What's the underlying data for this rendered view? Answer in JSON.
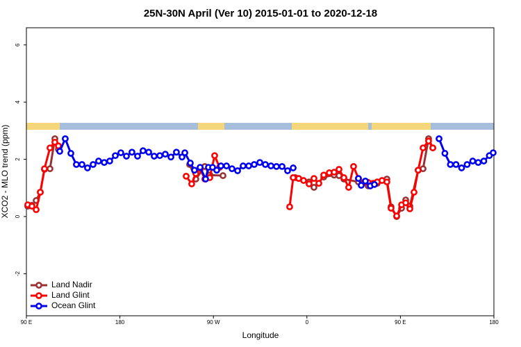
{
  "chart_data": {
    "type": "line",
    "title": "25N-30N April (Ver 10)   2015-01-01 to 2020-12-18",
    "x_label": "Longitude",
    "y_label": "XCO2 - MLO trend (ppm)",
    "xlim": [
      90,
      540
    ],
    "ylim": [
      -3.47,
      6.6
    ],
    "xticks": [
      {
        "value": 90,
        "label": "90 E"
      },
      180,
      {
        "value": 270,
        "label": "90 W"
      },
      {
        "value": 360,
        "label": "0"
      },
      {
        "value": 450,
        "label": "90 E"
      },
      {
        "value": 540,
        "label": "180"
      }
    ],
    "yticks": [
      -2,
      0,
      2,
      4,
      6
    ],
    "legend": "bottom-left",
    "series": [
      {
        "name": "Land Nadir",
        "color": "#993333",
        "x": [
          91.3,
          95.3,
          99.4,
          103.4,
          107.4,
          112.7,
          117.4,
          120.8,
          null,
          247.1,
          253.1,
          261.8,
          266.5,
          279.2,
          null,
          348.8,
          352.1,
          362.1,
          366.8,
          376.2,
          386.2,
          390.9,
          395.6,
          409.6,
          419,
          427.7,
          437,
          441,
          446.4,
          451.1,
          455.1,
          459.1,
          467.1,
          471.8,
          477.1,
          481.2
        ],
        "values": [
          0.36,
          0.39,
          0.56,
          0.85,
          1.65,
          1.67,
          2.72,
          2.35,
          null,
          1.82,
          1.31,
          1.75,
          1.45,
          1.43,
          null,
          1.36,
          1.33,
          1.21,
          1.02,
          1.38,
          1.45,
          1.43,
          1.31,
          1.21,
          1.07,
          1.16,
          1.31,
          0.34,
          0,
          0.29,
          0.58,
          0.36,
          1.62,
          1.67,
          2.72,
          2.4
        ]
      },
      {
        "name": "Land Glint",
        "color": "#ff0000",
        "x": [
          91.3,
          95.3,
          99.4,
          103.4,
          107.4,
          112.7,
          117.4,
          120.8,
          null,
          243.8,
          249.1,
          253.1,
          257.2,
          261.8,
          266.5,
          271.2,
          275.9,
          null,
          343.4,
          346.8,
          352.1,
          356.8,
          362.1,
          366.8,
          371.5,
          376.2,
          381.5,
          386.2,
          390.9,
          395.6,
          400.2,
          404.9,
          409.6,
          414.3,
          419,
          423.6,
          427.7,
          432.3,
          437,
          441,
          446.4,
          451.1,
          455.1,
          459.1,
          463.1,
          467.1,
          471.8,
          477.1,
          481.2
        ],
        "values": [
          0.41,
          0.36,
          0.24,
          0.85,
          1.67,
          2.4,
          2.6,
          2.47,
          null,
          1.41,
          1.14,
          1.5,
          1.67,
          1.31,
          1.36,
          2.13,
          1.72,
          null,
          0.34,
          1.36,
          1.33,
          1.26,
          1.14,
          1.33,
          1.16,
          1.45,
          1.53,
          1.55,
          1.65,
          1.36,
          1.02,
          1.75,
          1.33,
          1.19,
          1.19,
          1.16,
          1.21,
          1.26,
          1.21,
          0.29,
          0.02,
          0.41,
          0.48,
          0.27,
          0.85,
          1.62,
          2.4,
          2.64,
          2.4
        ]
      },
      {
        "name": "Ocean Glint",
        "color": "#0000ee",
        "x": [
          122.1,
          127.4,
          132.8,
          138.1,
          143.5,
          148.8,
          154.2,
          159.5,
          164.9,
          170.2,
          175.6,
          180.9,
          186.3,
          191.6,
          197,
          202.3,
          207.7,
          213,
          218.4,
          223.7,
          229.1,
          234.4,
          239.8,
          242.5,
          247.8,
          251.8,
          257.2,
          262.5,
          265.2,
          269.2,
          273.2,
          277.2,
          282.6,
          287.9,
          293.3,
          298.6,
          304,
          309.3,
          314.7,
          320,
          325.4,
          330.7,
          336.1,
          341.4,
          346.8,
          null,
          409.6,
          412.3,
          416.3,
          421,
          425,
          null,
          487.2,
          492.8,
          498.1,
          503.5,
          508.9,
          514.2,
          519.6,
          524.9,
          530.3,
          535.6,
          539.3
        ],
        "values": [
          2.28,
          2.72,
          2.21,
          1.82,
          1.82,
          1.7,
          1.82,
          1.94,
          1.89,
          1.94,
          2.13,
          2.23,
          2.11,
          2.25,
          2.11,
          2.3,
          2.25,
          2.11,
          2.13,
          2.18,
          2.08,
          2.25,
          2.08,
          2.23,
          1.87,
          1.62,
          1.72,
          1.31,
          1.72,
          1.72,
          1.62,
          1.77,
          1.77,
          1.67,
          1.6,
          1.77,
          1.77,
          1.82,
          1.89,
          1.82,
          1.77,
          1.75,
          1.75,
          1.6,
          1.7,
          null,
          1.33,
          1.09,
          1.24,
          1.07,
          1.12,
          null,
          2.72,
          2.21,
          1.82,
          1.82,
          1.7,
          1.82,
          1.94,
          1.89,
          1.94,
          2.13,
          2.23
        ]
      }
    ]
  }
}
